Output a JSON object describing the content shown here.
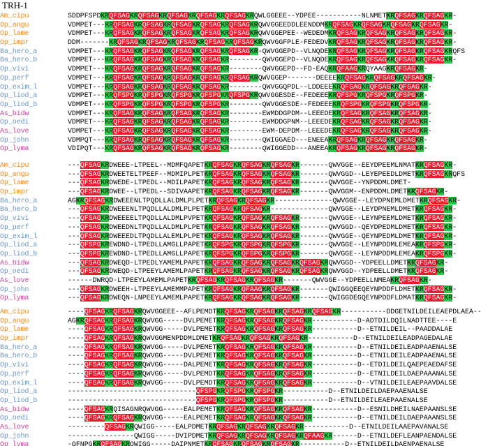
{
  "title": "TRH-1",
  "colors": {
    "Q": "#ea1b2c",
    "F": "#ea1b2c",
    "S": "#ea1b2c",
    "A": "#ea1b2c",
    "P": "#ea1b2c",
    "G": "#ea1b2c",
    "K": "#2ec54a",
    "R": "#2ec54a",
    "N": "#d93fc6",
    "amblyomma_label": "#f08a1d",
    "ophiura_label": "#f08a1d",
    "blue_label": "#6c94c8",
    "magenta_label": "#c8469a"
  },
  "blocks": [
    {
      "rows": [
        {
          "label": "Am_cipu",
          "cls": "c-am",
          "seq": "SDDPFSPDKRQFSAGKRQFSAGKRQFSAGKRQFSAGKRQFSAGKRQWLGGEEE--YDPEE-----------NLNMETKRQFSAGKRQFSAGKR-"
        },
        {
          "label": "Op_angu",
          "cls": "c-op",
          "seq": "VDMPET---KRQFSAGKRQFSAGKRQFSAGKRQFSAGKRQFSAGKRQWVGGEEDDLEENDDMKRQFSAGKRQFSAGKRQFSAGKRQFSAGKR-"
        },
        {
          "label": "Op_lame",
          "cls": "c-op",
          "seq": "VDMPET---KRQFSAGKRQFSAGKRQFSAGKRQFSAGKRQFSAGKRQWVGGEPEE--WEDEDMKRQFSAGKRQFSAGKRQFSAGKRQFSAGKR-"
        },
        {
          "label": "Op_impr",
          "cls": "c-op",
          "seq": "DDM-------KRQFSAGKRQFSAGKRQFSAGKRQFSAGKRQFSAGKRQWVGGFPLE-FEDEDVKRQFSAGKRQFSAGKRQFSAGKRQFSAGKR-"
        },
        {
          "label": "Ba_hero_a",
          "cls": "c-ba",
          "seq": "VDMPET---KRQFSAGKRQFSAGKRQFSAGKRQFSAGKRQFSAGKR-QWVGGEPD--VLNQDEKRQFSAGKRQFSAGKRQFSAGKRQFSAGKRQFS"
        },
        {
          "label": "Ba_hero_b",
          "cls": "c-ba",
          "seq": "VDMPET---KRQFSAGKRQFSAGKRQFSAGKRQFSAGKR--------QWVGGEPD--VLNQDEKRQFSAGKRQFSAGKRQFSAGKRQFSAGKR-"
        },
        {
          "label": "Op_vivi",
          "cls": "c-lo",
          "seq": "VDMPET---KRQFSAGKRQFSAGKRQFSAGKRQFSAGKR--------QWVGGEPD--FD-EAQKRQFAAGKRQYAAGKRQFSAGKR-"
        },
        {
          "label": "Op_perf",
          "cls": "c-lo",
          "seq": "VDMPET---KRQFSAGKRQFSAGKRQFSAGKRQFSAGKRQFSAGKRQWVGGEP-------DEEEEKRQFSAGKRQFSAGKRQFSAGKR-"
        },
        {
          "label": "Op_exim_l",
          "cls": "c-lo",
          "seq": "VDMPET---KRQFSAGKRQFSAGKRQFSAGKRQFSAGKR--------QWVGGQPDL--LDDEEEKRQFSAGKRQFSAGKRQFSAGKR-"
        },
        {
          "label": "Op_liod_a",
          "cls": "c-lo",
          "seq": "VDMPET---KRQFSPGKRQFSPGKRQFSPGKRQFSPGKRQFSPGKRQWVGGESDE--FEDEEEKRQFSPGKRQFSPGKRQFSPGKR-"
        },
        {
          "label": "Op_liod_b",
          "cls": "c-lo",
          "seq": "VDMPET---KRQFSPGKRQFSPGKRQFSPGKRQFSPGKR--------QWVGGESDE--FEDEEEKRQFSPGKRQFSPGKRQFSPGKR-"
        },
        {
          "label": "As_bidw",
          "cls": "c-as",
          "seq": "VDMPET---KRQFSAGKRQFSAGKRQFSAGKRQFSAGKR--------EWMDDGPDM--LEEEDEKRQFSAGKRQFSAGKRQFSAGKR-"
        },
        {
          "label": "Op_oedi",
          "cls": "c-lo",
          "seq": "VDMPET---KRQFSAGKRQFSAGKRQFSAGKRQFSAGKR--------EWMDDGPNM--LEEEDEKRQFSAGKRQFSAGKRQFSAGKR-"
        },
        {
          "label": "As_love",
          "cls": "c-as",
          "seq": "VDMPET---KRQFSAGKRQFSAGKRQFSAGKRQFSAGKR--------EWM-DEPDM--LEEEDEKRQFSAGKRQFSAGKRQFSAGKR-"
        },
        {
          "label": "Op_john",
          "cls": "c-lo",
          "seq": "VDMPQT---KRQFSAGKRQFSAGKRQFSAGKRQFSAGKR--------QWIGGAED---ENEEAKRQFSAGKRQFSAGKRQFSAGKR-"
        },
        {
          "label": "Op_lyma",
          "cls": "c-as",
          "seq": "VDIPQT---KRQFSAGKRQFSAGKRQFSAGKRQFSAGKR--------QWIGGEDD---ANEEAKRQFSAGKRQFSAGKRQFSAGKR-"
        }
      ]
    },
    {
      "rows": [
        {
          "label": "Am_cipu",
          "cls": "c-am",
          "seq": "---QFSAGKRDWEEE-LTPEEL--MDMFQAPETKRQFSAGKRQFSAGKRQFSAGKR-------QWVGGE--EEYDPEEMLNMATKRQFSAGKR-"
        },
        {
          "label": "Op_angu",
          "cls": "c-op",
          "seq": "---QFSAGKRDWEETELTPEEF--MDMIPLPETKRQFSAGKRQFSAGKRQFSAGKR-------QWVGGD--LEYEPEEDLDMETKRQFSAGKRQFS"
        },
        {
          "label": "Op_lame",
          "cls": "c-op",
          "seq": "---QFSAGKRDWEDE-LTPEDL--MDILPAPETKRQFSAGKRQFSAGKRQFSAGKR-------QWVGGE--YNPDDMLDMET-"
        },
        {
          "label": "Op_impr",
          "cls": "c-op",
          "seq": "---QFSAGKRDWEE--LTPEDL--SDIVAAPETKRQFSAGKRQFSAGKRQFSAGKR-------QWVGGM--ENPDDMLDMETKRQFSAGKR-"
        },
        {
          "label": "Ba_hero_a",
          "cls": "c-ba",
          "seq": "AGKRQFSAGKRDWEEENLTPQDLLALDMLPLPETKRQFSAGKRQFSAGKR--------------QWVGGE--LEYDPNEMLDMETKRQFSAGKR-"
        },
        {
          "label": "Ba_hero_b",
          "cls": "c-ba",
          "seq": "---QFSAGKRDWEEENLTPQDLLALDMLPLPETKRQFSAGKRQFSAGKR--------------QWVGGE--LEYDPNEMLDMETKRQFSAGKR-"
        },
        {
          "label": "Op_vivi",
          "cls": "c-lo",
          "seq": "---QFSAGKRDWEEEELTPQDLLALDMLPVPETKRQFSAGKRQFSAGKRQFSAGKR-------QWVGGE--LEYNPEEMLDMETKRQFSAGKR-"
        },
        {
          "label": "Op_perf",
          "cls": "c-lo",
          "seq": "---QFSAGKRDWEEDNLTPQDLLALDMLPLPETKRQFSAGKRQFSAGKRQFSAGKR-------QWVGGD--QEYDPEDMLDMETKRQFSAGKR-"
        },
        {
          "label": "Op_exim_l",
          "cls": "c-lo",
          "seq": "---QFSAGKRDWEEEDLTPQDLLALEMLPLPETKRQFSAGKRQFSAGKRQFSAGKR-------QWVGGE--QEYNPEDMLDMETKRQFSAGKR-"
        },
        {
          "label": "Op_liod_a",
          "cls": "c-lo",
          "seq": "---QFSPGKREWDND-LTPEDLLAMGLLPAPETKRQFSPGKRQFSPGKRQFSPGKR-------QWVGGE--LEYNPDDMLEMEAKRQFSPGKR-"
        },
        {
          "label": "Op_liod_b",
          "cls": "c-lo",
          "seq": "---QFSPGKREWDND-LTPEDLLAMGLLPAPETKRQFSPGKRQFSPGKRQFSPGKR-------QWVGGE--LEYNPDDMLEMEAKRQFSPGKR-"
        },
        {
          "label": "As_bidw",
          "cls": "c-as",
          "seq": "---QFSAGKRDWEQD-LTPEDLYAMEMLPAPETKRQFSAGKRQFSAGKRQFSAGKRQFSAGKRQWVGGD--YDPEELLDMETKRQFSAGKR-"
        },
        {
          "label": "Op_oedi",
          "cls": "c-lo",
          "seq": "---QFSAGKRDWEQD-LTPEEYLAMEMLPAPETKRQFSAGKRQFSAGKRQFSAGKRQFSAGKRQWVGGD--YDPEELLDMETKRQFSAGKR-"
        },
        {
          "label": "As_love",
          "cls": "c-as",
          "seq": "------DWRQD-LTPEEYLAMEMLPAPETKRQFSAGKRQFSAGKRQFSAGKR-------QWVGGE--YDPEELLNMEAKRQFSAGKR-"
        },
        {
          "label": "Op_john",
          "cls": "c-lo",
          "seq": "---QFSAGKRDWEEH-LTPEEYLAMEMMPAPETKRQFSAGKRQFAAGKRQFSAGKR-------QWIGGQEEQEYNPDDFLDMETKRQFSAGKR-"
        },
        {
          "label": "Op_lyma",
          "cls": "c-as",
          "seq": "---QFSAGKRDWEQN-LNPEEYLAMEMLPAPETKRQFSAGKRQFSAGKRQFSAGKR-------QWIGGDEGQEYNPDDFLDMATKRQFSAGKR-"
        }
      ]
    },
    {
      "rows": [
        {
          "label": "Am_cipu",
          "cls": "c-am",
          "seq": "----QFSAGKRQFSAGKRQWVGGEEE--AFLPEMDTKRQFSAGKRQFSAGKRQFSAGKRQFSAGKR-----------DDGETNILDEILEAEPDLAEA--E"
        },
        {
          "label": "Op_angu",
          "cls": "c-op",
          "seq": "AGKRQFSAGKRQFSAGKRQWVGG-----DVLPEMETKRQFSAGKRQFSAGKRQFSAGKR-----------D-ADTDILDQILNADTTEE----E"
        },
        {
          "label": "Op_lame",
          "cls": "c-op",
          "seq": "----QFSAGKRQFSAGKRQWVGG-----DVLPEMETKRQFSAGKRQFSAGKRQFSAGKR-----------D--ETNILDEIL--PAADDALAE"
        },
        {
          "label": "Op_impr",
          "cls": "c-op",
          "seq": "----QFSAGKRQFSAGKRQWVGGMENPDDMLDMETKRQFSAGKRQFSAGKRQFSAGKR-----------D--ETNILDEILEADPAGEDALAE"
        },
        {
          "label": "Ba_hero_a",
          "cls": "c-ba",
          "seq": "----QFSAGKRQFSAGKRQWVGG-----DVLPEMETKRQFSAGKRQFSAGKRQFSAGKR-----------D--ETNILDEILEADPAAENALSE"
        },
        {
          "label": "Ba_hero_b",
          "cls": "c-ba",
          "seq": "----QFSAGKRQFSAGKRQWVGG-----DVLPEMETKRQFSAGKRQFSAGKRQFSAGKR-----------D--ETNILDEILEADPAAENALSE"
        },
        {
          "label": "Op_vivi",
          "cls": "c-lo",
          "seq": "----QFSAGKRQFSAGKRQWVGG-----DALPEMETKRQFSAGKRQFSAGKRQFSAGKR-----------D--ETDILDEILQAEPEAEDAFSE"
        },
        {
          "label": "Op_perf",
          "cls": "c-lo",
          "seq": "----QFSAGKRQFSAGKRQWVGG-----DVLPEMDTKRQFSAGKRQFSAGKRQFSAGKR-----------D--ETNILDEILDAEPAAANALSE"
        },
        {
          "label": "Op_exim_l",
          "cls": "c-lo",
          "seq": "----QFSAGKRQFSAGKRQWVGG-----DVLPEMDTKRQFSAGKRQFSAGKRQFSAGKR-----------D--VTNILDEILEAEPAAVDALSE"
        },
        {
          "label": "Op_liod_a",
          "cls": "c-lo",
          "seq": "-------------------------------QFSPGKRQFSPGKRQFSPGKR-----------D--ETNILDEILDAEPAAENALSE"
        },
        {
          "label": "Op_liod_b",
          "cls": "c-lo",
          "seq": "-------------------------------QFSPGKRQFSPGKRQFSPGKR-----------D--ETNILDEILEAEPAAENALSE"
        },
        {
          "label": "As_bidw",
          "cls": "c-as",
          "seq": "----QFSAGKRQISAGNRQWVGG-----EALPEMETKRQFSAGKRQFSAGKRQFSAGKR-----------D--ESNILDHEILNAEPAANSLSE"
        },
        {
          "label": "Op_oedi",
          "cls": "c-lo",
          "seq": "----QFSAGKRQFSAGKRQWVGG-----EALPEMETKRQFSAGKRQFSAGKRQFSAGKR-----------D--ETNILDEILDAEPAAANSLSE"
        },
        {
          "label": "As_love",
          "cls": "c-as",
          "seq": "---------QFSAGKRQWIGG-----EALPDMETKRQFSAGKRQFSAGKRQFSAGKR-----------D--ETNILDEILAAEPAVANALSE"
        },
        {
          "label": "Op_john",
          "cls": "c-lo",
          "seq": "----------------QWIGG-----DVIPDMETKRQFSAGKRQFSAGKRQFSAGKRQFAAGKR------D--ETNILDEFLEANPAENDALSE"
        },
        {
          "label": "Op_lyma",
          "cls": "c-as",
          "seq": "-QFNPGKRQFSAGKRQWIGG-----DAIPNMETKRQFSAGKRQFSAGKRQFSAGKR-----------D--ETNILDEILDAENPAENALSE"
        }
      ]
    }
  ]
}
